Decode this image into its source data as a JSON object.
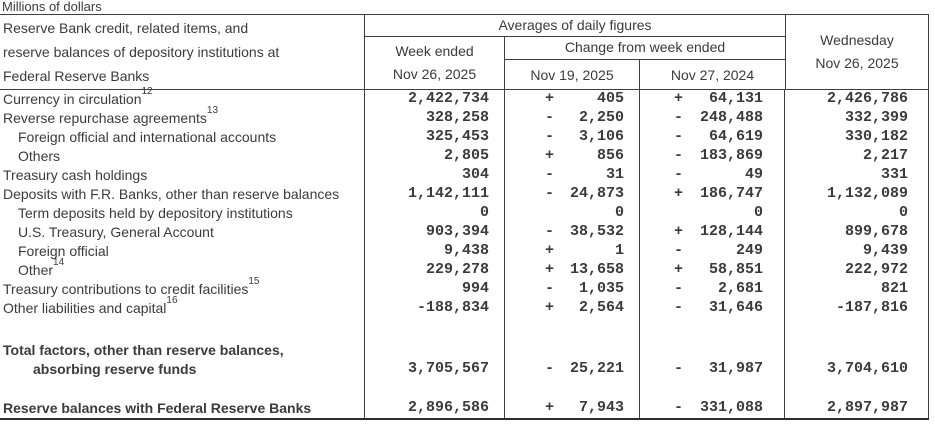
{
  "page": {
    "unit_label": "Millions of dollars"
  },
  "table": {
    "stub_header_lines": [
      "Reserve Bank credit, related items, and",
      "reserve balances of depository institutions at",
      "Federal Reserve Banks"
    ],
    "col_groups": {
      "averages": "Averages of daily figures",
      "change": "Change from week ended"
    },
    "columns": {
      "week_ended_line1": "Week ended",
      "week_ended_line2": "Nov 26, 2025",
      "change_1": "Nov 19, 2025",
      "change_2": "Nov 27, 2024",
      "wednesday_line1": "Wednesday",
      "wednesday_line2": "Nov 26, 2025"
    },
    "rows": [
      {
        "label": "Currency in circulation",
        "sup": "12",
        "indent": false,
        "bold": false,
        "spacer_before": 0,
        "week": "2,422,734",
        "s1": "+",
        "v1": "405",
        "s2": "+",
        "v2": "64,131",
        "wed": "2,426,786"
      },
      {
        "label": "Reverse repurchase agreements",
        "sup": "13",
        "indent": false,
        "bold": false,
        "spacer_before": 0,
        "week": "328,258",
        "s1": "-",
        "v1": "2,250",
        "s2": "-",
        "v2": "248,488",
        "wed": "332,399"
      },
      {
        "label": "Foreign official and international accounts",
        "sup": "",
        "indent": true,
        "bold": false,
        "spacer_before": 0,
        "week": "325,453",
        "s1": "-",
        "v1": "3,106",
        "s2": "-",
        "v2": "64,619",
        "wed": "330,182"
      },
      {
        "label": "Others",
        "sup": "",
        "indent": true,
        "bold": false,
        "spacer_before": 0,
        "week": "2,805",
        "s1": "+",
        "v1": "856",
        "s2": "-",
        "v2": "183,869",
        "wed": "2,217"
      },
      {
        "label": "Treasury cash holdings",
        "sup": "",
        "indent": false,
        "bold": false,
        "spacer_before": 0,
        "week": "304",
        "s1": "-",
        "v1": "31",
        "s2": "-",
        "v2": "49",
        "wed": "331"
      },
      {
        "label": "Deposits with F.R. Banks, other than reserve balances",
        "sup": "",
        "indent": false,
        "bold": false,
        "spacer_before": 0,
        "week": "1,142,111",
        "s1": "-",
        "v1": "24,873",
        "s2": "+",
        "v2": "186,747",
        "wed": "1,132,089"
      },
      {
        "label": "Term deposits held by depository institutions",
        "sup": "",
        "indent": true,
        "bold": false,
        "spacer_before": 0,
        "week": "0",
        "s1": "",
        "v1": "0",
        "s2": "",
        "v2": "0",
        "wed": "0"
      },
      {
        "label": "U.S. Treasury, General Account",
        "sup": "",
        "indent": true,
        "bold": false,
        "spacer_before": 0,
        "week": "903,394",
        "s1": "-",
        "v1": "38,532",
        "s2": "+",
        "v2": "128,144",
        "wed": "899,678"
      },
      {
        "label": "Foreign official",
        "sup": "",
        "indent": true,
        "bold": false,
        "spacer_before": 0,
        "week": "9,438",
        "s1": "+",
        "v1": "1",
        "s2": "-",
        "v2": "249",
        "wed": "9,439"
      },
      {
        "label": "Other",
        "sup": "14",
        "indent": true,
        "bold": false,
        "spacer_before": 0,
        "week": "229,278",
        "s1": "+",
        "v1": "13,658",
        "s2": "+",
        "v2": "58,851",
        "wed": "222,972"
      },
      {
        "label": "Treasury contributions to credit facilities",
        "sup": "15",
        "indent": false,
        "bold": false,
        "spacer_before": 0,
        "week": "994",
        "s1": "-",
        "v1": "1,035",
        "s2": "-",
        "v2": "2,681",
        "wed": "821"
      },
      {
        "label": "Other liabilities and capital",
        "sup": "16",
        "indent": false,
        "bold": false,
        "spacer_before": 0,
        "week": "-188,834",
        "s1": "+",
        "v1": "2,564",
        "s2": "-",
        "v2": "31,646",
        "wed": "-187,816"
      },
      {
        "label": "Total factors, other than reserve balances,",
        "label2": "absorbing reserve funds",
        "sup": "",
        "indent": false,
        "bold": true,
        "spacer_before": 23,
        "week": "3,705,567",
        "s1": "-",
        "v1": "25,221",
        "s2": "-",
        "v2": "31,987",
        "wed": "3,704,610"
      },
      {
        "label": "Reserve balances with Federal Reserve Banks",
        "sup": "",
        "indent": false,
        "bold": true,
        "spacer_before": 20,
        "week": "2,896,586",
        "s1": "+",
        "v1": "7,943",
        "s2": "-",
        "v2": "331,088",
        "wed": "2,897,987"
      }
    ]
  }
}
